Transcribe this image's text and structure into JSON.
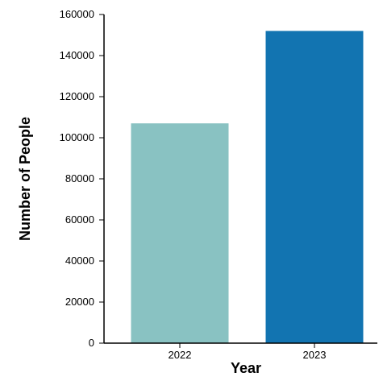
{
  "chart_data": {
    "type": "bar",
    "categories": [
      "2022",
      "2023"
    ],
    "values": [
      107000,
      152000
    ],
    "colors": [
      "#89C2C2",
      "#1274B1"
    ],
    "xlabel": "Year",
    "ylabel": "Number of People",
    "yticks": [
      0,
      20000,
      40000,
      60000,
      80000,
      100000,
      120000,
      140000,
      160000
    ],
    "ylim": [
      0,
      160000
    ],
    "grid": false,
    "legend": "none"
  }
}
